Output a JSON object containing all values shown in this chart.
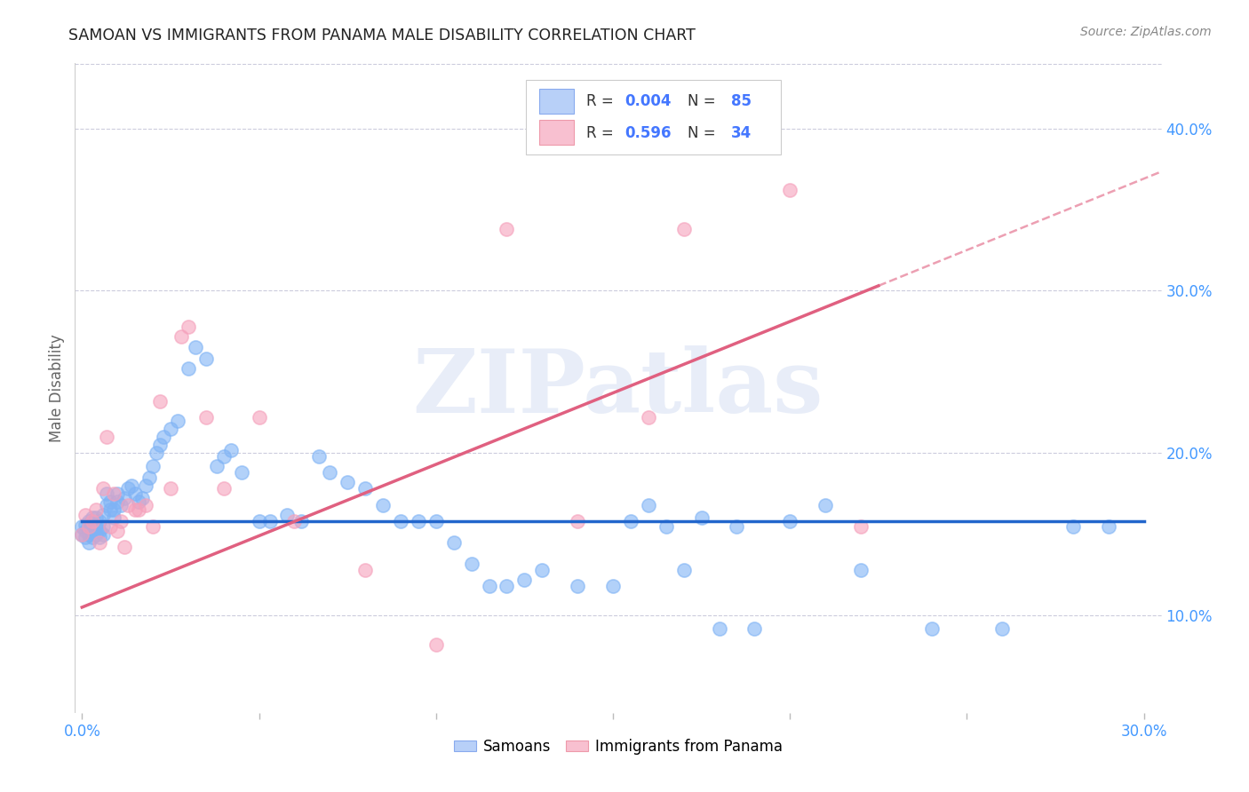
{
  "title": "SAMOAN VS IMMIGRANTS FROM PANAMA MALE DISABILITY CORRELATION CHART",
  "source": "Source: ZipAtlas.com",
  "ylabel": "Male Disability",
  "right_yticks": [
    "10.0%",
    "20.0%",
    "30.0%",
    "40.0%"
  ],
  "right_ytick_vals": [
    0.1,
    0.2,
    0.3,
    0.4
  ],
  "xmin": -0.002,
  "xmax": 0.305,
  "ymin": 0.04,
  "ymax": 0.44,
  "blue_color": "#7fb3f5",
  "pink_color": "#f5a0bb",
  "blue_line_color": "#2266cc",
  "pink_line_color": "#e06080",
  "watermark": "ZIPatlas",
  "samoans_label": "Samoans",
  "panama_label": "Immigrants from Panama",
  "r_blue": 0.004,
  "n_blue": 85,
  "r_pink": 0.596,
  "n_pink": 34,
  "blue_scatter_x": [
    0.0,
    0.0,
    0.001,
    0.001,
    0.001,
    0.002,
    0.002,
    0.002,
    0.003,
    0.003,
    0.003,
    0.004,
    0.004,
    0.004,
    0.005,
    0.005,
    0.005,
    0.006,
    0.006,
    0.006,
    0.007,
    0.007,
    0.008,
    0.008,
    0.009,
    0.009,
    0.01,
    0.01,
    0.011,
    0.012,
    0.013,
    0.014,
    0.015,
    0.016,
    0.017,
    0.018,
    0.019,
    0.02,
    0.021,
    0.022,
    0.023,
    0.025,
    0.027,
    0.03,
    0.032,
    0.035,
    0.038,
    0.04,
    0.042,
    0.045,
    0.05,
    0.053,
    0.058,
    0.062,
    0.067,
    0.07,
    0.075,
    0.08,
    0.085,
    0.09,
    0.095,
    0.1,
    0.105,
    0.11,
    0.115,
    0.12,
    0.125,
    0.13,
    0.14,
    0.15,
    0.155,
    0.16,
    0.17,
    0.18,
    0.19,
    0.2,
    0.21,
    0.22,
    0.24,
    0.26,
    0.165,
    0.175,
    0.185,
    0.28,
    0.29
  ],
  "blue_scatter_y": [
    0.155,
    0.15,
    0.148,
    0.152,
    0.156,
    0.145,
    0.15,
    0.158,
    0.148,
    0.153,
    0.16,
    0.15,
    0.155,
    0.16,
    0.148,
    0.152,
    0.158,
    0.15,
    0.155,
    0.162,
    0.168,
    0.175,
    0.165,
    0.17,
    0.16,
    0.165,
    0.17,
    0.175,
    0.168,
    0.172,
    0.178,
    0.18,
    0.175,
    0.17,
    0.172,
    0.18,
    0.185,
    0.192,
    0.2,
    0.205,
    0.21,
    0.215,
    0.22,
    0.252,
    0.265,
    0.258,
    0.192,
    0.198,
    0.202,
    0.188,
    0.158,
    0.158,
    0.162,
    0.158,
    0.198,
    0.188,
    0.182,
    0.178,
    0.168,
    0.158,
    0.158,
    0.158,
    0.145,
    0.132,
    0.118,
    0.118,
    0.122,
    0.128,
    0.118,
    0.118,
    0.158,
    0.168,
    0.128,
    0.092,
    0.092,
    0.158,
    0.168,
    0.128,
    0.092,
    0.092,
    0.155,
    0.16,
    0.155,
    0.155,
    0.155
  ],
  "pink_scatter_x": [
    0.0,
    0.001,
    0.002,
    0.003,
    0.004,
    0.005,
    0.006,
    0.007,
    0.008,
    0.009,
    0.01,
    0.011,
    0.012,
    0.013,
    0.015,
    0.016,
    0.018,
    0.02,
    0.022,
    0.025,
    0.028,
    0.03,
    0.035,
    0.04,
    0.05,
    0.06,
    0.08,
    0.1,
    0.12,
    0.14,
    0.16,
    0.17,
    0.2,
    0.22
  ],
  "pink_scatter_y": [
    0.15,
    0.162,
    0.155,
    0.158,
    0.165,
    0.145,
    0.178,
    0.21,
    0.155,
    0.175,
    0.152,
    0.158,
    0.142,
    0.168,
    0.165,
    0.165,
    0.168,
    0.155,
    0.232,
    0.178,
    0.272,
    0.278,
    0.222,
    0.178,
    0.222,
    0.158,
    0.128,
    0.082,
    0.338,
    0.158,
    0.222,
    0.338,
    0.362,
    0.155
  ],
  "blue_line_x": [
    0.0,
    0.3
  ],
  "blue_line_y": [
    0.158,
    0.158
  ],
  "pink_line_x0": 0.0,
  "pink_line_x_solid_end": 0.225,
  "pink_line_x_dashed_end": 0.305,
  "pink_line_y0": 0.105,
  "pink_line_slope": 0.88
}
